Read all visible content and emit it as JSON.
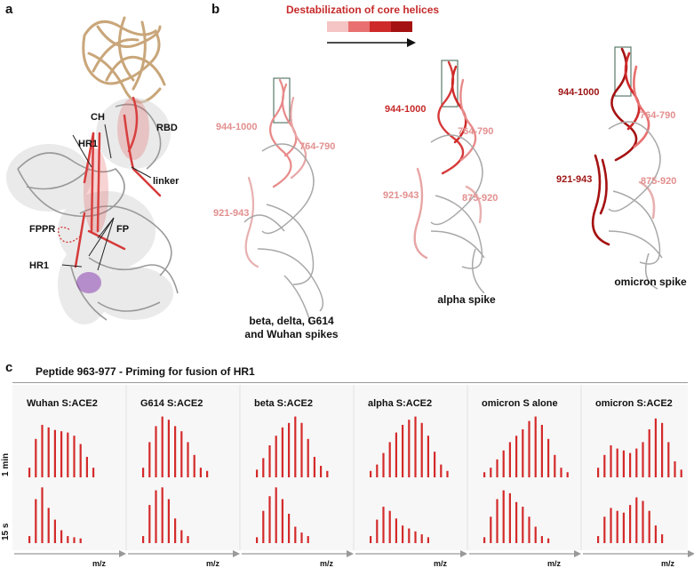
{
  "panel_a": {
    "label": "a",
    "annotations": {
      "ch": "CH",
      "hr1_top": "HR1",
      "rbd": "RBD",
      "linker": "linker",
      "fppr": "FPPR",
      "fp": "FP",
      "hr1_bottom": "HR1"
    }
  },
  "panel_b": {
    "label": "b",
    "legend_title": "Destabilization of core helices",
    "legend_colors": [
      "#f5c4c4",
      "#e87070",
      "#cf2a2a",
      "#a51212"
    ],
    "structures": [
      {
        "caption_line1": "beta, delta, G614",
        "caption_line2": "and Wuhan spikes",
        "labels": {
          "r944": "944-1000",
          "r764": "764-790",
          "r921": "921-943"
        }
      },
      {
        "caption": "alpha spike",
        "labels": {
          "r944": "944-1000",
          "r764": "764-790",
          "r921": "921-943",
          "r875": "875-920"
        }
      },
      {
        "caption": "omicron spike",
        "labels": {
          "r944": "944-1000",
          "r764": "764-790",
          "r921": "921-943",
          "r875": "875-920"
        }
      }
    ]
  },
  "panel_c": {
    "label": "c",
    "title": "Peptide 963-977 - Priming for fusion of HR1",
    "row_labels": [
      "1 min",
      "15 s"
    ],
    "x_axis_label": "m/z",
    "bar_color": "#d42a2a"
  },
  "chart_data": {
    "type": "bar",
    "title": "Peptide 963-977 - Priming for fusion of HR1",
    "xlabel": "m/z",
    "ylabel": "",
    "series": [
      {
        "name": "Wuhan S:ACE2",
        "one_min": [
          0.15,
          0.6,
          0.82,
          0.78,
          0.74,
          0.72,
          0.7,
          0.65,
          0.52,
          0.32,
          0.15
        ],
        "fifteen_s": [
          0.12,
          0.75,
          0.95,
          0.6,
          0.4,
          0.22,
          0.12,
          0.1,
          0.08
        ]
      },
      {
        "name": "G614 S:ACE2",
        "one_min": [
          0.15,
          0.55,
          0.8,
          0.95,
          0.9,
          0.8,
          0.72,
          0.55,
          0.35,
          0.15,
          0.1
        ],
        "fifteen_s": [
          0.12,
          0.65,
          0.9,
          0.95,
          0.75,
          0.42,
          0.22,
          0.12
        ]
      },
      {
        "name": "beta S:ACE2",
        "one_min": [
          0.12,
          0.3,
          0.5,
          0.65,
          0.78,
          0.85,
          0.95,
          0.85,
          0.6,
          0.32,
          0.18,
          0.1
        ],
        "fifteen_s": [
          0.1,
          0.55,
          0.8,
          0.95,
          0.75,
          0.5,
          0.28,
          0.18,
          0.12
        ]
      },
      {
        "name": "alpha S:ACE2",
        "one_min": [
          0.1,
          0.2,
          0.38,
          0.55,
          0.7,
          0.82,
          0.9,
          0.95,
          0.85,
          0.65,
          0.4,
          0.2,
          0.1
        ],
        "fifteen_s": [
          0.12,
          0.4,
          0.62,
          0.55,
          0.42,
          0.3,
          0.25,
          0.2,
          0.15,
          0.1
        ]
      },
      {
        "name": "omicron S alone",
        "one_min": [
          0.08,
          0.15,
          0.28,
          0.42,
          0.55,
          0.65,
          0.75,
          0.88,
          0.95,
          0.82,
          0.6,
          0.35,
          0.15,
          0.08
        ],
        "fifteen_s": [
          0.1,
          0.45,
          0.75,
          0.9,
          0.85,
          0.7,
          0.62,
          0.45,
          0.28,
          0.12,
          0.08
        ]
      },
      {
        "name": "omicron S:ACE2",
        "one_min": [
          0.15,
          0.35,
          0.5,
          0.45,
          0.42,
          0.38,
          0.45,
          0.55,
          0.75,
          0.92,
          0.85,
          0.55,
          0.25,
          0.12
        ],
        "fifteen_s": [
          0.12,
          0.45,
          0.6,
          0.55,
          0.52,
          0.65,
          0.78,
          0.72,
          0.55,
          0.3,
          0.15
        ]
      }
    ]
  }
}
